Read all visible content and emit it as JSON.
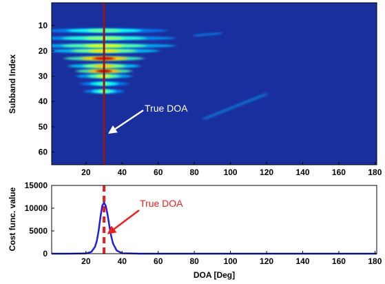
{
  "chart_data": [
    {
      "type": "heatmap",
      "title": "",
      "xlabel": "",
      "ylabel": "Subband Index",
      "x_ticks": [
        20,
        40,
        60,
        80,
        100,
        120,
        140,
        160,
        180
      ],
      "y_ticks": [
        10,
        20,
        30,
        40,
        50,
        60
      ],
      "xlim": [
        1,
        181
      ],
      "ylim": [
        1,
        65
      ],
      "y_reversed": true,
      "colormap": "jet",
      "true_doa_line": {
        "x": 30,
        "color": "#8b1a1a"
      },
      "annotation": {
        "text": "True DOA",
        "color": "#ffffff",
        "points_to": {
          "x": 30,
          "y": 54
        }
      },
      "bright_subbands": [
        {
          "subband": 28,
          "intensity": 1.0,
          "halfwidth_deg": 7
        },
        {
          "subband": 23,
          "intensity": 0.95,
          "halfwidth_deg": 10
        },
        {
          "subband": 26,
          "intensity": 0.55,
          "halfwidth_deg": 9
        },
        {
          "subband": 20,
          "intensity": 0.5,
          "halfwidth_deg": 14
        },
        {
          "subband": 18,
          "intensity": 0.42,
          "halfwidth_deg": 18
        },
        {
          "subband": 30,
          "intensity": 0.4,
          "halfwidth_deg": 7
        },
        {
          "subband": 15,
          "intensity": 0.3,
          "halfwidth_deg": 18
        },
        {
          "subband": 12,
          "intensity": 0.22,
          "halfwidth_deg": 16
        },
        {
          "subband": 36,
          "intensity": 0.25,
          "halfwidth_deg": 5
        },
        {
          "subband": 33,
          "intensity": 0.2,
          "halfwidth_deg": 6
        }
      ]
    },
    {
      "type": "line",
      "title": "",
      "xlabel": "DOA [Deg]",
      "ylabel": "Cost func. value",
      "xlim": [
        1,
        181
      ],
      "ylim": [
        0,
        15000
      ],
      "x_ticks": [
        20,
        40,
        60,
        80,
        100,
        120,
        140,
        160,
        180
      ],
      "y_ticks": [
        0,
        5000,
        10000,
        15000
      ],
      "series": [
        {
          "color": "#1f1fd6",
          "x": [
            1,
            10,
            20,
            23,
            25,
            26,
            27,
            28,
            29,
            30,
            31,
            32,
            33,
            34,
            35,
            37,
            40,
            50,
            80,
            120,
            181
          ],
          "values": [
            0,
            0,
            50,
            400,
            1500,
            2800,
            5000,
            8000,
            10500,
            11200,
            10500,
            8500,
            6000,
            3800,
            2200,
            700,
            100,
            0,
            0,
            0,
            0
          ]
        }
      ],
      "true_doa_line": {
        "x": 30,
        "color": "#ee1c1c",
        "style": "dashed"
      },
      "annotation": {
        "text": "True DOA",
        "color": "#ee1c1c",
        "points_to": {
          "x": 31,
          "y": 4500
        }
      }
    }
  ]
}
